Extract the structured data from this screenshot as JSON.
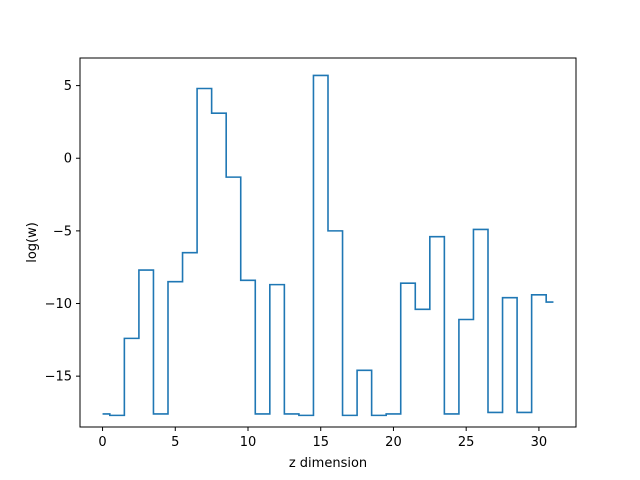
{
  "chart_data": {
    "type": "line",
    "drawstyle": "steps-mid",
    "title": "",
    "xlabel": "z dimension",
    "ylabel": "log(w)",
    "xlim": [
      -1.55,
      32.55
    ],
    "ylim": [
      -18.5,
      6.9
    ],
    "xticks": [
      0,
      5,
      10,
      15,
      20,
      25,
      30
    ],
    "xtick_labels": [
      "0",
      "5",
      "10",
      "15",
      "20",
      "25",
      "30"
    ],
    "yticks": [
      5,
      0,
      -5,
      -10,
      -15
    ],
    "ytick_labels": [
      "5",
      "0",
      "−5",
      "−10",
      "−15"
    ],
    "grid": false,
    "legend": "none",
    "colors": {
      "line": "#1f77b4",
      "axes": "#000000",
      "background": "#ffffff"
    },
    "series": [
      {
        "x": [
          0,
          1,
          2,
          3,
          4,
          5,
          6,
          7,
          8,
          9,
          10,
          11,
          12,
          13,
          14,
          15,
          16,
          17,
          18,
          19,
          20,
          21,
          22,
          23,
          24,
          25,
          26,
          27,
          28,
          29,
          30,
          31
        ],
        "values": [
          -17.6,
          -17.7,
          -12.4,
          -7.7,
          -17.6,
          -8.5,
          -6.5,
          4.8,
          3.1,
          -1.3,
          -8.4,
          -17.6,
          -8.7,
          -17.6,
          -17.7,
          5.7,
          -5.0,
          -17.7,
          -14.6,
          -17.7,
          -17.6,
          -8.6,
          -10.4,
          -5.4,
          -17.6,
          -11.1,
          -4.9,
          -17.5,
          -9.6,
          -17.5,
          -9.4,
          -9.9
        ]
      }
    ]
  }
}
